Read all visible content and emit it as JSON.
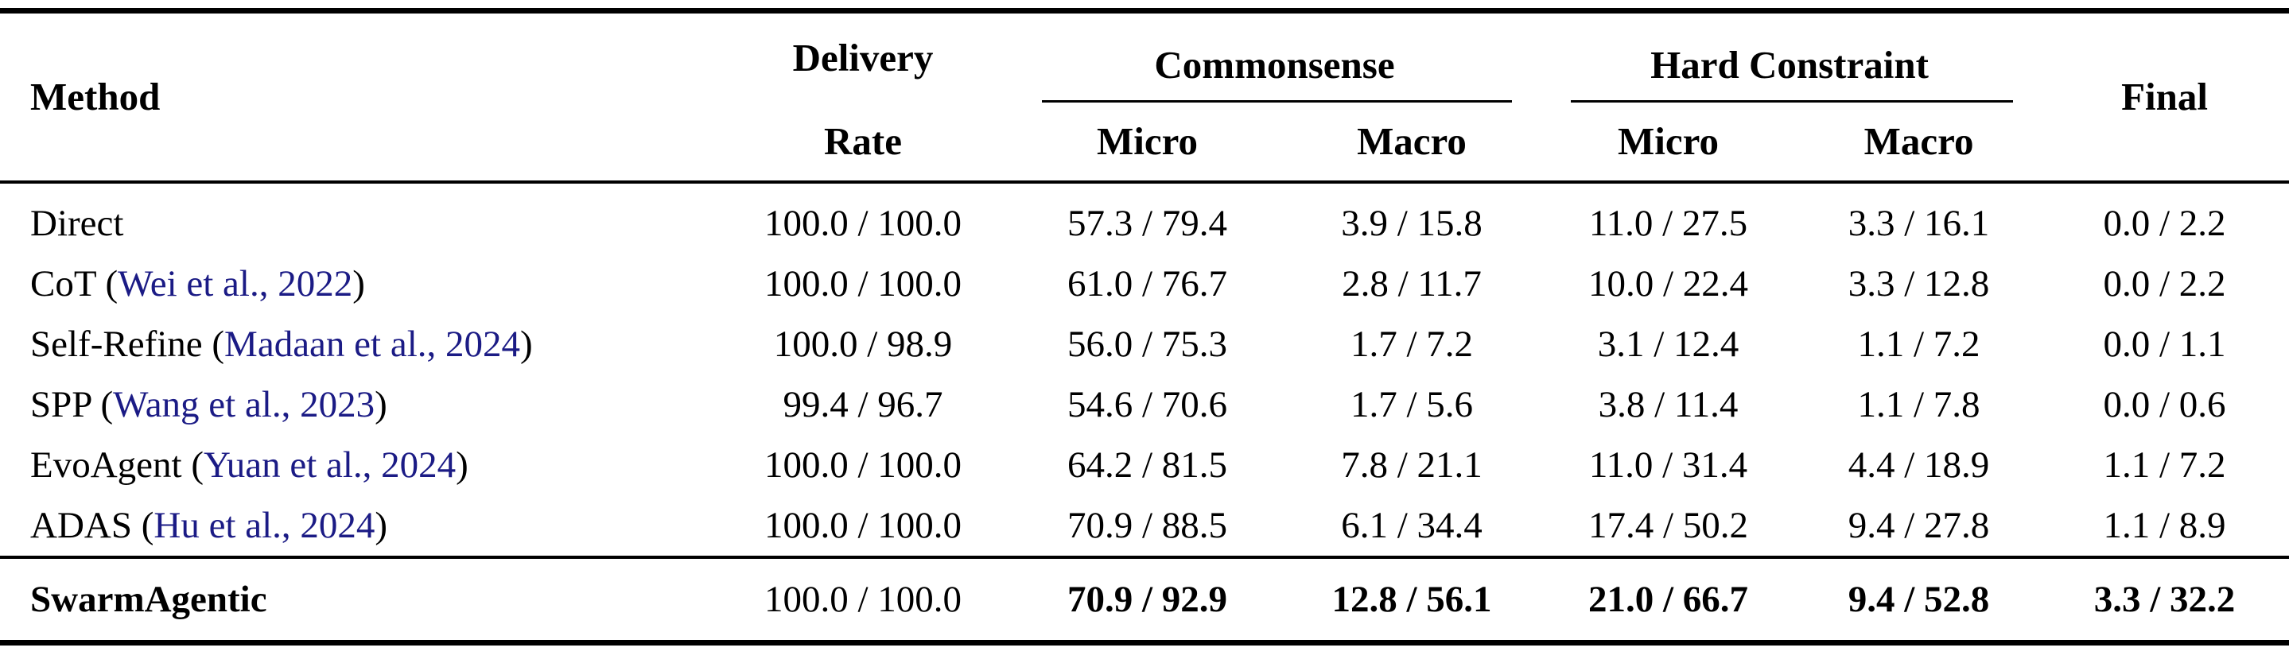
{
  "colors": {
    "background": "#FFFFFF",
    "text": "#000000",
    "citation_link": "#1B1B85",
    "rule": "#000000"
  },
  "header": {
    "method": "Method",
    "delivery_line1": "Delivery",
    "delivery_line2": "Rate",
    "commonsense": "Commonsense",
    "hard_constraint": "Hard Constraint",
    "cs_micro": "Micro",
    "cs_macro": "Macro",
    "hc_micro": "Micro",
    "hc_macro": "Macro",
    "final": "Final"
  },
  "rows": [
    {
      "name": "Direct",
      "delivery": "100.0 / 100.0",
      "cs_micro": "57.3 / 79.4",
      "cs_macro": "3.9 / 15.8",
      "hc_micro": "11.0 / 27.5",
      "hc_macro": "3.3 / 16.1",
      "final": "0.0 / 2.2"
    },
    {
      "name": "CoT",
      "cite_open": " (",
      "citation": "Wei et al., 2022",
      "cite_close": ")",
      "delivery": "100.0 / 100.0",
      "cs_micro": "61.0 / 76.7",
      "cs_macro": "2.8 / 11.7",
      "hc_micro": "10.0 / 22.4",
      "hc_macro": "3.3 / 12.8",
      "final": "0.0 / 2.2"
    },
    {
      "name": "Self-Refine",
      "cite_open": " (",
      "citation": "Madaan et al., 2024",
      "cite_close": ")",
      "delivery": "100.0 / 98.9",
      "cs_micro": "56.0 / 75.3",
      "cs_macro": "1.7 / 7.2",
      "hc_micro": "3.1 / 12.4",
      "hc_macro": "1.1 / 7.2",
      "final": "0.0 / 1.1"
    },
    {
      "name": "SPP",
      "cite_open": " (",
      "citation": "Wang et al., 2023",
      "cite_close": ")",
      "delivery": "99.4 / 96.7",
      "cs_micro": "54.6 / 70.6",
      "cs_macro": "1.7 / 5.6",
      "hc_micro": "3.8 / 11.4",
      "hc_macro": "1.1 / 7.8",
      "final": "0.0 / 0.6"
    },
    {
      "name": "EvoAgent",
      "cite_open": " (",
      "citation": "Yuan et al., 2024",
      "cite_close": ")",
      "delivery": "100.0 / 100.0",
      "cs_micro": "64.2 / 81.5",
      "cs_macro": "7.8 / 21.1",
      "hc_micro": "11.0 / 31.4",
      "hc_macro": "4.4 / 18.9",
      "final": "1.1 / 7.2"
    },
    {
      "name": "ADAS",
      "cite_open": " (",
      "citation": "Hu et al., 2024",
      "cite_close": ")",
      "delivery": "100.0 / 100.0",
      "cs_micro": "70.9 / 88.5",
      "cs_macro": "6.1 / 34.4",
      "hc_micro": "17.4 / 50.2",
      "hc_macro": "9.4 / 27.8",
      "final": "1.1 / 8.9"
    }
  ],
  "highlight": {
    "name": "SwarmAgentic",
    "delivery": "100.0 / 100.0",
    "cs_micro": "70.9 / 92.9",
    "cs_macro": "12.8 / 56.1",
    "hc_micro": "21.0 / 66.7",
    "hc_macro": "9.4 / 52.8",
    "final": "3.3 / 32.2"
  }
}
